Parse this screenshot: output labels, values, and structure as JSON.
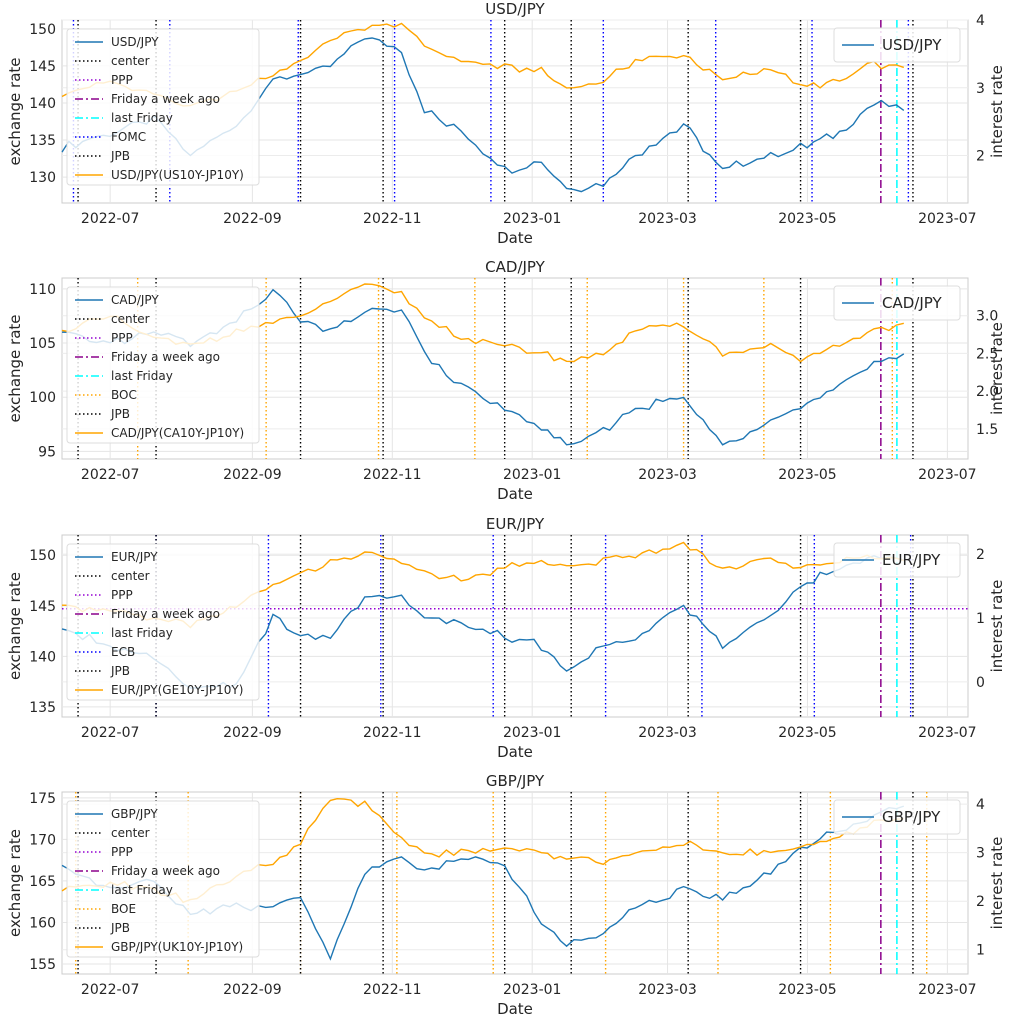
{
  "chart_data": [
    {
      "type": "line",
      "title": "USD/JPY",
      "xlabel": "Date",
      "ylabel": "exchange rate",
      "y2label": "interest rate",
      "x_ticks": [
        "2022-07",
        "2022-09",
        "2022-11",
        "2023-01",
        "2023-03",
        "2023-05",
        "2023-07"
      ],
      "y_ticks": [
        "130",
        "135",
        "140",
        "145",
        "150"
      ],
      "y2_ticks": [
        "2",
        "3",
        "4"
      ],
      "ylim": [
        126.5,
        151.2
      ],
      "y2lim": [
        1.3,
        4.0
      ],
      "xlim": [
        "2022-06-10",
        "2023-07-10"
      ],
      "legend": [
        {
          "label": "USD/JPY",
          "color": "#1f77b4",
          "style": "solid"
        },
        {
          "label": "center",
          "color": "#000000",
          "style": "dotted"
        },
        {
          "label": "PPP",
          "color": "#9400d3",
          "style": "dotted"
        },
        {
          "label": "Friday a week ago",
          "color": "#8b008b",
          "style": "dashdot"
        },
        {
          "label": "last Friday",
          "color": "#00ffff",
          "style": "dashdot"
        },
        {
          "label": "FOMC",
          "color": "#0000ff",
          "style": "dotted"
        },
        {
          "label": "JPB",
          "color": "#000000",
          "style": "dotted"
        },
        {
          "label": "USD/JPY(US10Y-JP10Y)",
          "color": "#ffa500",
          "style": "solid"
        }
      ],
      "legend2": "USD/JPY",
      "event_lines": {
        "event_name": "FOMC",
        "event_color": "#0000ff",
        "event_dates": [
          "2022-06-15",
          "2022-07-27",
          "2022-09-21",
          "2022-11-02",
          "2022-12-14",
          "2023-02-01",
          "2023-03-22",
          "2023-05-03",
          "2023-06-14"
        ],
        "jpb_dates": [
          "2022-06-17",
          "2022-07-21",
          "2022-09-22",
          "2022-10-28",
          "2022-12-20",
          "2023-01-18",
          "2023-03-10",
          "2023-04-28",
          "2023-06-16"
        ],
        "week_ago": "2023-06-02",
        "last_friday": "2023-06-09"
      },
      "series": [
        {
          "name": "USD/JPY",
          "axis": "left",
          "color": "#1f77b4",
          "x": [
            "2022-06-10",
            "2022-07-01",
            "2022-07-20",
            "2022-08-05",
            "2022-08-25",
            "2022-09-10",
            "2022-09-22",
            "2022-10-05",
            "2022-10-20",
            "2022-11-05",
            "2022-11-15",
            "2022-12-01",
            "2022-12-20",
            "2023-01-05",
            "2023-01-16",
            "2023-02-01",
            "2023-02-15",
            "2023-03-08",
            "2023-03-25",
            "2023-04-15",
            "2023-04-28",
            "2023-05-15",
            "2023-05-30",
            "2023-06-12"
          ],
          "values": [
            134,
            136,
            138,
            133,
            137,
            143,
            144,
            145,
            149,
            147,
            139,
            136,
            131,
            132,
            128.5,
            129,
            133,
            137,
            131,
            133,
            134,
            136,
            140,
            139
          ]
        },
        {
          "name": "USD/JPY(US10Y-JP10Y)",
          "axis": "right",
          "color": "#ffa500",
          "x": [
            "2022-06-10",
            "2022-07-01",
            "2022-07-20",
            "2022-08-05",
            "2022-08-25",
            "2022-09-10",
            "2022-09-22",
            "2022-10-05",
            "2022-10-20",
            "2022-11-05",
            "2022-11-15",
            "2022-12-01",
            "2022-12-20",
            "2023-01-05",
            "2023-01-16",
            "2023-02-01",
            "2023-02-15",
            "2023-03-08",
            "2023-03-25",
            "2023-04-15",
            "2023-04-28",
            "2023-05-15",
            "2023-05-30",
            "2023-06-12"
          ],
          "values": [
            2.9,
            3.1,
            2.9,
            2.7,
            2.95,
            3.2,
            3.4,
            3.7,
            3.9,
            3.95,
            3.6,
            3.4,
            3.3,
            3.25,
            3.0,
            3.1,
            3.4,
            3.5,
            3.1,
            3.3,
            3.0,
            3.1,
            3.35,
            3.3
          ]
        }
      ]
    },
    {
      "type": "line",
      "title": "CAD/JPY",
      "xlabel": "Date",
      "ylabel": "exchange rate",
      "y2label": "interest rate",
      "x_ticks": [
        "2022-07",
        "2022-09",
        "2022-11",
        "2023-01",
        "2023-03",
        "2023-05",
        "2023-07"
      ],
      "y_ticks": [
        "95",
        "100",
        "105",
        "110"
      ],
      "y2_ticks": [
        "1.5",
        "2.0",
        "2.5",
        "3.0"
      ],
      "ylim": [
        94.3,
        111
      ],
      "y2lim": [
        1.1,
        3.5
      ],
      "xlim": [
        "2022-06-10",
        "2023-07-10"
      ],
      "legend": [
        {
          "label": "CAD/JPY",
          "color": "#1f77b4",
          "style": "solid"
        },
        {
          "label": "center",
          "color": "#000000",
          "style": "dotted"
        },
        {
          "label": "PPP",
          "color": "#9400d3",
          "style": "dotted"
        },
        {
          "label": "Friday a week ago",
          "color": "#8b008b",
          "style": "dashdot"
        },
        {
          "label": "last Friday",
          "color": "#00ffff",
          "style": "dashdot"
        },
        {
          "label": "BOC",
          "color": "#ffa500",
          "style": "dotted"
        },
        {
          "label": "JPB",
          "color": "#000000",
          "style": "dotted"
        },
        {
          "label": "CAD/JPY(CA10Y-JP10Y)",
          "color": "#ffa500",
          "style": "solid"
        }
      ],
      "legend2": "CAD/JPY",
      "event_lines": {
        "event_name": "BOC",
        "event_color": "#ffa500",
        "event_dates": [
          "2022-07-13",
          "2022-09-07",
          "2022-10-26",
          "2022-12-07",
          "2023-01-25",
          "2023-03-08",
          "2023-04-12",
          "2023-06-07"
        ],
        "jpb_dates": [
          "2022-06-17",
          "2022-07-21",
          "2022-09-22",
          "2022-10-28",
          "2022-12-20",
          "2023-01-18",
          "2023-03-10",
          "2023-04-28",
          "2023-06-16"
        ],
        "week_ago": "2023-06-02",
        "last_friday": "2023-06-09"
      },
      "series": [
        {
          "name": "CAD/JPY",
          "axis": "left",
          "color": "#1f77b4",
          "x": [
            "2022-06-10",
            "2022-07-01",
            "2022-07-20",
            "2022-08-05",
            "2022-08-25",
            "2022-09-10",
            "2022-09-22",
            "2022-10-05",
            "2022-10-20",
            "2022-11-05",
            "2022-11-15",
            "2022-12-01",
            "2022-12-20",
            "2023-01-05",
            "2023-01-16",
            "2023-02-01",
            "2023-02-15",
            "2023-03-08",
            "2023-03-25",
            "2023-04-15",
            "2023-04-28",
            "2023-05-15",
            "2023-05-30",
            "2023-06-12"
          ],
          "values": [
            106,
            105,
            106,
            105,
            107,
            110,
            107,
            106,
            108,
            108,
            104,
            101,
            99,
            97,
            95.5,
            97,
            99,
            100,
            95.5,
            98,
            99,
            101,
            103,
            104
          ]
        },
        {
          "name": "CAD/JPY(CA10Y-JP10Y)",
          "axis": "right",
          "color": "#ffa500",
          "x": [
            "2022-06-10",
            "2022-07-01",
            "2022-07-20",
            "2022-08-05",
            "2022-08-25",
            "2022-09-10",
            "2022-09-22",
            "2022-10-05",
            "2022-10-20",
            "2022-11-05",
            "2022-11-15",
            "2022-12-01",
            "2022-12-20",
            "2023-01-05",
            "2023-01-16",
            "2023-02-01",
            "2023-02-15",
            "2023-03-08",
            "2023-03-25",
            "2023-04-15",
            "2023-04-28",
            "2023-05-15",
            "2023-05-30",
            "2023-06-12"
          ],
          "values": [
            2.8,
            3.0,
            2.7,
            2.6,
            2.8,
            2.9,
            3.0,
            3.2,
            3.4,
            3.3,
            3.0,
            2.7,
            2.6,
            2.5,
            2.4,
            2.5,
            2.8,
            2.9,
            2.5,
            2.6,
            2.4,
            2.6,
            2.8,
            2.9
          ]
        }
      ]
    },
    {
      "type": "line",
      "title": "EUR/JPY",
      "xlabel": "Date",
      "ylabel": "exchange rate",
      "y2label": "interest rate",
      "x_ticks": [
        "2022-07",
        "2022-09",
        "2022-11",
        "2023-01",
        "2023-03",
        "2023-05",
        "2023-07"
      ],
      "y_ticks": [
        "135",
        "140",
        "145",
        "150"
      ],
      "y2_ticks": [
        "0",
        "1",
        "2"
      ],
      "ylim": [
        134,
        152
      ],
      "y2lim": [
        -0.55,
        2.3
      ],
      "xlim": [
        "2022-06-10",
        "2023-07-10"
      ],
      "legend": [
        {
          "label": "EUR/JPY",
          "color": "#1f77b4",
          "style": "solid"
        },
        {
          "label": "center",
          "color": "#000000",
          "style": "dotted"
        },
        {
          "label": "PPP",
          "color": "#9400d3",
          "style": "dotted"
        },
        {
          "label": "Friday a week ago",
          "color": "#8b008b",
          "style": "dashdot"
        },
        {
          "label": "last Friday",
          "color": "#00ffff",
          "style": "dashdot"
        },
        {
          "label": "ECB",
          "color": "#0000ff",
          "style": "dotted"
        },
        {
          "label": "JPB",
          "color": "#000000",
          "style": "dotted"
        },
        {
          "label": "EUR/JPY(GE10Y-JP10Y)",
          "color": "#ffa500",
          "style": "solid"
        }
      ],
      "legend2": "EUR/JPY",
      "ppp_value": 144.7,
      "event_lines": {
        "event_name": "ECB",
        "event_color": "#0000ff",
        "event_dates": [
          "2022-07-21",
          "2022-09-08",
          "2022-10-27",
          "2022-12-15",
          "2023-02-02",
          "2023-03-16",
          "2023-05-04",
          "2023-06-15"
        ],
        "jpb_dates": [
          "2022-06-17",
          "2022-07-21",
          "2022-09-22",
          "2022-10-28",
          "2022-12-20",
          "2023-01-18",
          "2023-03-10",
          "2023-04-28",
          "2023-06-16"
        ],
        "week_ago": "2023-06-02",
        "last_friday": "2023-06-09"
      },
      "series": [
        {
          "name": "EUR/JPY",
          "axis": "left",
          "color": "#1f77b4",
          "x": [
            "2022-06-10",
            "2022-07-01",
            "2022-07-20",
            "2022-08-05",
            "2022-08-25",
            "2022-09-10",
            "2022-09-22",
            "2022-10-05",
            "2022-10-20",
            "2022-11-05",
            "2022-11-15",
            "2022-12-01",
            "2022-12-20",
            "2023-01-05",
            "2023-01-16",
            "2023-02-01",
            "2023-02-15",
            "2023-03-08",
            "2023-03-25",
            "2023-04-15",
            "2023-04-28",
            "2023-05-15",
            "2023-05-30",
            "2023-06-12"
          ],
          "values": [
            143,
            141,
            140,
            137,
            137,
            144,
            142,
            142,
            146,
            146,
            144,
            143,
            142,
            141,
            138.5,
            141,
            142,
            145,
            141,
            144,
            147,
            149,
            150,
            149.5
          ]
        },
        {
          "name": "EUR/JPY(GE10Y-JP10Y)",
          "axis": "right",
          "color": "#ffa500",
          "x": [
            "2022-06-10",
            "2022-07-01",
            "2022-07-20",
            "2022-08-05",
            "2022-08-25",
            "2022-09-10",
            "2022-09-22",
            "2022-10-05",
            "2022-10-20",
            "2022-11-05",
            "2022-11-15",
            "2022-12-01",
            "2022-12-20",
            "2023-01-05",
            "2023-01-16",
            "2023-02-01",
            "2023-02-15",
            "2023-03-08",
            "2023-03-25",
            "2023-04-15",
            "2023-04-28",
            "2023-05-15",
            "2023-05-30",
            "2023-06-12"
          ],
          "values": [
            1.2,
            1.1,
            1.0,
            0.9,
            1.2,
            1.5,
            1.7,
            1.9,
            2.0,
            1.9,
            1.7,
            1.6,
            1.8,
            1.9,
            1.8,
            1.9,
            2.0,
            2.15,
            1.8,
            1.9,
            1.8,
            1.9,
            1.95,
            1.9
          ]
        }
      ]
    },
    {
      "type": "line",
      "title": "GBP/JPY",
      "xlabel": "Date",
      "ylabel": "exchange rate",
      "y2label": "interest rate",
      "x_ticks": [
        "2022-07",
        "2022-09",
        "2022-11",
        "2023-01",
        "2023-03",
        "2023-05",
        "2023-07"
      ],
      "y_ticks": [
        "155",
        "160",
        "165",
        "170",
        "175"
      ],
      "y2_ticks": [
        "1",
        "2",
        "3",
        "4"
      ],
      "ylim": [
        153.8,
        175.7
      ],
      "y2lim": [
        0.5,
        4.25
      ],
      "xlim": [
        "2022-06-10",
        "2023-07-10"
      ],
      "legend": [
        {
          "label": "GBP/JPY",
          "color": "#1f77b4",
          "style": "solid"
        },
        {
          "label": "center",
          "color": "#000000",
          "style": "dotted"
        },
        {
          "label": "PPP",
          "color": "#9400d3",
          "style": "dotted"
        },
        {
          "label": "Friday a week ago",
          "color": "#8b008b",
          "style": "dashdot"
        },
        {
          "label": "last Friday",
          "color": "#00ffff",
          "style": "dashdot"
        },
        {
          "label": "BOE",
          "color": "#ffa500",
          "style": "dotted"
        },
        {
          "label": "JPB",
          "color": "#000000",
          "style": "dotted"
        },
        {
          "label": "GBP/JPY(UK10Y-JP10Y)",
          "color": "#ffa500",
          "style": "solid"
        }
      ],
      "legend2": "GBP/JPY",
      "event_lines": {
        "event_name": "BOE",
        "event_color": "#ffa500",
        "event_dates": [
          "2022-06-16",
          "2022-08-04",
          "2022-09-22",
          "2022-11-03",
          "2022-12-15",
          "2023-02-02",
          "2023-03-23",
          "2023-05-11",
          "2023-06-22"
        ],
        "jpb_dates": [
          "2022-06-17",
          "2022-07-21",
          "2022-09-22",
          "2022-10-28",
          "2022-12-20",
          "2023-01-18",
          "2023-03-10",
          "2023-04-28",
          "2023-06-16"
        ],
        "week_ago": "2023-06-02",
        "last_friday": "2023-06-09"
      },
      "series": [
        {
          "name": "GBP/JPY",
          "axis": "left",
          "color": "#1f77b4",
          "x": [
            "2022-06-10",
            "2022-07-01",
            "2022-07-20",
            "2022-08-05",
            "2022-08-25",
            "2022-09-10",
            "2022-09-22",
            "2022-10-05",
            "2022-10-20",
            "2022-11-05",
            "2022-11-15",
            "2022-12-01",
            "2022-12-20",
            "2023-01-05",
            "2023-01-16",
            "2023-02-01",
            "2023-02-15",
            "2023-03-08",
            "2023-03-25",
            "2023-04-15",
            "2023-04-28",
            "2023-05-15",
            "2023-05-30",
            "2023-06-12"
          ],
          "values": [
            167,
            164,
            165,
            161,
            162,
            162,
            163,
            156,
            166,
            168,
            166,
            168,
            167,
            160,
            157,
            159,
            162,
            164,
            163,
            166,
            169,
            171,
            173,
            174
          ]
        },
        {
          "name": "GBP/JPY(UK10Y-JP10Y)",
          "axis": "right",
          "color": "#ffa500",
          "x": [
            "2022-06-10",
            "2022-07-01",
            "2022-07-20",
            "2022-08-05",
            "2022-08-25",
            "2022-09-10",
            "2022-09-22",
            "2022-10-05",
            "2022-10-20",
            "2022-11-05",
            "2022-11-15",
            "2022-12-01",
            "2022-12-20",
            "2023-01-05",
            "2023-01-16",
            "2023-02-01",
            "2023-02-15",
            "2023-03-08",
            "2023-03-25",
            "2023-04-15",
            "2023-04-28",
            "2023-05-15",
            "2023-05-30",
            "2023-06-12"
          ],
          "values": [
            2.2,
            2.4,
            2.2,
            2.0,
            2.5,
            2.8,
            3.2,
            4.1,
            4.0,
            3.3,
            3.0,
            3.0,
            3.1,
            3.0,
            2.9,
            2.8,
            3.0,
            3.2,
            3.0,
            3.0,
            3.1,
            3.3,
            3.6,
            3.7
          ]
        }
      ]
    }
  ]
}
